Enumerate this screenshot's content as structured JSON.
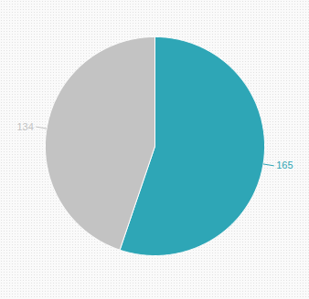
{
  "chart_data": {
    "type": "pie",
    "values": [
      165,
      134
    ],
    "colors": [
      "#2ea6b6",
      "#c3c3c3"
    ],
    "data_labels": true
  }
}
